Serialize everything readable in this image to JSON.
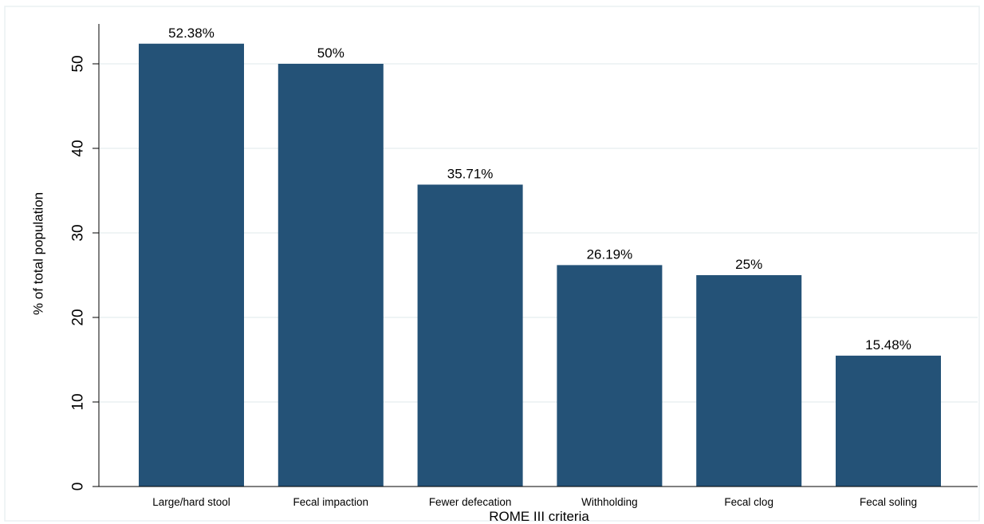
{
  "chart_data": {
    "type": "bar",
    "categories": [
      "Large/hard stool",
      "Fecal impaction",
      "Fewer defecation",
      "Withholding",
      "Fecal clog",
      "Fecal soling"
    ],
    "values": [
      52.38,
      50,
      35.71,
      26.19,
      25,
      15.48
    ],
    "data_labels": [
      "52.38%",
      "50%",
      "35.71%",
      "26.19%",
      "25%",
      "15.48%"
    ],
    "title": "",
    "xlabel": "ROME III criteria",
    "ylabel": "% of total population",
    "ylim": [
      0,
      55
    ],
    "yticks": [
      0,
      10,
      20,
      30,
      40,
      50
    ],
    "grid": true,
    "legend": "none",
    "colors": {
      "bar": "#245277",
      "grid": "#eaf0f2",
      "axis": "#000000",
      "background": "#ffffff"
    }
  }
}
